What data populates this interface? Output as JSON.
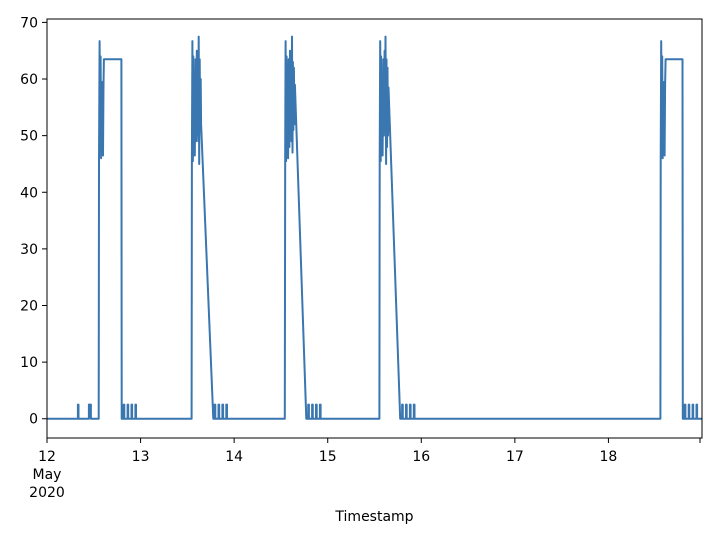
{
  "chart_data": {
    "type": "line",
    "title": "",
    "xlabel": "Timestamp",
    "ylabel": "",
    "xlim": [
      "2020-05-12T00:00",
      "2020-05-19T00:00"
    ],
    "ylim": [
      -3.4,
      70.6
    ],
    "grid": false,
    "legend": "none",
    "colors": {
      "line": "#3a76af",
      "axes": "#000000"
    },
    "yticks": [
      0,
      10,
      20,
      30,
      40,
      50,
      60,
      70
    ],
    "xticks": [
      {
        "x": "2020-05-12T00:00",
        "lines": [
          "12",
          "May",
          "2020"
        ]
      },
      {
        "x": "2020-05-13T00:00",
        "lines": [
          "13"
        ]
      },
      {
        "x": "2020-05-14T00:00",
        "lines": [
          "14"
        ]
      },
      {
        "x": "2020-05-15T00:00",
        "lines": [
          "15"
        ]
      },
      {
        "x": "2020-05-16T00:00",
        "lines": [
          "16"
        ]
      },
      {
        "x": "2020-05-17T00:00",
        "lines": [
          "17"
        ]
      },
      {
        "x": "2020-05-18T00:00",
        "lines": [
          "18"
        ]
      }
    ],
    "series": [
      {
        "points": [
          [
            "2020-05-12T00:00",
            0
          ],
          [
            "2020-05-12T07:55",
            0
          ],
          [
            "2020-05-12T07:55",
            2.5
          ],
          [
            "2020-05-12T08:05",
            2.5
          ],
          [
            "2020-05-12T08:05",
            0
          ],
          [
            "2020-05-12T10:45",
            0
          ],
          [
            "2020-05-12T10:45",
            2.5
          ],
          [
            "2020-05-12T11:15",
            2.5
          ],
          [
            "2020-05-12T11:15",
            0
          ],
          [
            "2020-05-12T13:15",
            0
          ],
          [
            "2020-05-12T13:20",
            45.5
          ],
          [
            "2020-05-12T13:30",
            66.7
          ],
          [
            "2020-05-12T13:38",
            48
          ],
          [
            "2020-05-12T13:45",
            64
          ],
          [
            "2020-05-12T13:52",
            46
          ],
          [
            "2020-05-12T14:00",
            59
          ],
          [
            "2020-05-12T14:08",
            48
          ],
          [
            "2020-05-12T14:15",
            59.5
          ],
          [
            "2020-05-12T14:22",
            46.5
          ],
          [
            "2020-05-12T14:30",
            59
          ],
          [
            "2020-05-12T14:36",
            63.5
          ],
          [
            "2020-05-12T19:05",
            63.5
          ],
          [
            "2020-05-12T19:10",
            0
          ],
          [
            "2020-05-12T19:40",
            0
          ],
          [
            "2020-05-12T19:40",
            2.5
          ],
          [
            "2020-05-12T19:50",
            2.5
          ],
          [
            "2020-05-12T19:50",
            0
          ],
          [
            "2020-05-12T20:40",
            0
          ],
          [
            "2020-05-12T20:40",
            2.5
          ],
          [
            "2020-05-12T20:50",
            2.5
          ],
          [
            "2020-05-12T20:50",
            0
          ],
          [
            "2020-05-12T21:40",
            0
          ],
          [
            "2020-05-12T21:40",
            2.5
          ],
          [
            "2020-05-12T21:50",
            2.5
          ],
          [
            "2020-05-12T21:50",
            0
          ],
          [
            "2020-05-12T22:40",
            0
          ],
          [
            "2020-05-12T22:40",
            2.5
          ],
          [
            "2020-05-12T22:50",
            2.5
          ],
          [
            "2020-05-12T22:50",
            0
          ],
          [
            "2020-05-13T13:05",
            0
          ],
          [
            "2020-05-13T13:10",
            46
          ],
          [
            "2020-05-13T13:18",
            66.7
          ],
          [
            "2020-05-13T13:25",
            45.5
          ],
          [
            "2020-05-13T13:32",
            64
          ],
          [
            "2020-05-13T13:40",
            47
          ],
          [
            "2020-05-13T13:48",
            59.5
          ],
          [
            "2020-05-13T13:55",
            46.5
          ],
          [
            "2020-05-13T14:05",
            63.5
          ],
          [
            "2020-05-13T14:15",
            49
          ],
          [
            "2020-05-13T14:25",
            65
          ],
          [
            "2020-05-13T14:32",
            50
          ],
          [
            "2020-05-13T14:40",
            63.5
          ],
          [
            "2020-05-13T14:48",
            49
          ],
          [
            "2020-05-13T14:55",
            67.5
          ],
          [
            "2020-05-13T15:02",
            45
          ],
          [
            "2020-05-13T15:10",
            63.5
          ],
          [
            "2020-05-13T15:18",
            51
          ],
          [
            "2020-05-13T15:25",
            60
          ],
          [
            "2020-05-13T15:32",
            52
          ],
          [
            "2020-05-13T18:40",
            0
          ],
          [
            "2020-05-13T19:00",
            0
          ],
          [
            "2020-05-13T19:00",
            2.5
          ],
          [
            "2020-05-13T19:10",
            2.5
          ],
          [
            "2020-05-13T19:10",
            0
          ],
          [
            "2020-05-13T20:00",
            0
          ],
          [
            "2020-05-13T20:00",
            2.5
          ],
          [
            "2020-05-13T20:10",
            2.5
          ],
          [
            "2020-05-13T20:10",
            0
          ],
          [
            "2020-05-13T21:00",
            0
          ],
          [
            "2020-05-13T21:00",
            2.5
          ],
          [
            "2020-05-13T21:10",
            2.5
          ],
          [
            "2020-05-13T21:10",
            0
          ],
          [
            "2020-05-13T22:00",
            0
          ],
          [
            "2020-05-13T22:00",
            2.5
          ],
          [
            "2020-05-13T22:10",
            2.5
          ],
          [
            "2020-05-13T22:10",
            0
          ],
          [
            "2020-05-14T13:00",
            0
          ],
          [
            "2020-05-14T13:05",
            47
          ],
          [
            "2020-05-14T13:12",
            66.7
          ],
          [
            "2020-05-14T13:20",
            45.5
          ],
          [
            "2020-05-14T13:28",
            64
          ],
          [
            "2020-05-14T13:35",
            47.5
          ],
          [
            "2020-05-14T13:42",
            59.5
          ],
          [
            "2020-05-14T13:50",
            46
          ],
          [
            "2020-05-14T14:00",
            63.5
          ],
          [
            "2020-05-14T14:10",
            48
          ],
          [
            "2020-05-14T14:20",
            65
          ],
          [
            "2020-05-14T14:28",
            50
          ],
          [
            "2020-05-14T14:35",
            63.5
          ],
          [
            "2020-05-14T14:42",
            49
          ],
          [
            "2020-05-14T14:50",
            67.5
          ],
          [
            "2020-05-14T14:58",
            47
          ],
          [
            "2020-05-14T15:05",
            63
          ],
          [
            "2020-05-14T15:12",
            51
          ],
          [
            "2020-05-14T15:20",
            62
          ],
          [
            "2020-05-14T15:28",
            52
          ],
          [
            "2020-05-14T15:35",
            59
          ],
          [
            "2020-05-14T18:30",
            0
          ],
          [
            "2020-05-14T19:00",
            0
          ],
          [
            "2020-05-14T19:00",
            2.5
          ],
          [
            "2020-05-14T19:10",
            2.5
          ],
          [
            "2020-05-14T19:10",
            0
          ],
          [
            "2020-05-14T20:00",
            0
          ],
          [
            "2020-05-14T20:00",
            2.5
          ],
          [
            "2020-05-14T20:10",
            2.5
          ],
          [
            "2020-05-14T20:10",
            0
          ],
          [
            "2020-05-14T21:00",
            0
          ],
          [
            "2020-05-14T21:00",
            2.5
          ],
          [
            "2020-05-14T21:10",
            2.5
          ],
          [
            "2020-05-14T21:10",
            0
          ],
          [
            "2020-05-14T22:00",
            0
          ],
          [
            "2020-05-14T22:00",
            2.5
          ],
          [
            "2020-05-14T22:10",
            2.5
          ],
          [
            "2020-05-14T22:10",
            0
          ],
          [
            "2020-05-15T13:15",
            0
          ],
          [
            "2020-05-15T13:20",
            46
          ],
          [
            "2020-05-15T13:28",
            66.7
          ],
          [
            "2020-05-15T13:35",
            45.5
          ],
          [
            "2020-05-15T13:42",
            64
          ],
          [
            "2020-05-15T13:50",
            47.5
          ],
          [
            "2020-05-15T13:58",
            59.5
          ],
          [
            "2020-05-15T14:05",
            46.5
          ],
          [
            "2020-05-15T14:15",
            63.5
          ],
          [
            "2020-05-15T14:25",
            50
          ],
          [
            "2020-05-15T14:35",
            65
          ],
          [
            "2020-05-15T14:42",
            51
          ],
          [
            "2020-05-15T14:50",
            67.5
          ],
          [
            "2020-05-15T14:58",
            45
          ],
          [
            "2020-05-15T15:05",
            63.5
          ],
          [
            "2020-05-15T15:12",
            48
          ],
          [
            "2020-05-15T15:20",
            62
          ],
          [
            "2020-05-15T15:28",
            50
          ],
          [
            "2020-05-15T15:35",
            58.5
          ],
          [
            "2020-05-15T18:35",
            0
          ],
          [
            "2020-05-15T19:05",
            0
          ],
          [
            "2020-05-15T19:05",
            2.5
          ],
          [
            "2020-05-15T19:15",
            2.5
          ],
          [
            "2020-05-15T19:15",
            0
          ],
          [
            "2020-05-15T20:05",
            0
          ],
          [
            "2020-05-15T20:05",
            2.5
          ],
          [
            "2020-05-15T20:15",
            2.5
          ],
          [
            "2020-05-15T20:15",
            0
          ],
          [
            "2020-05-15T21:05",
            0
          ],
          [
            "2020-05-15T21:05",
            2.5
          ],
          [
            "2020-05-15T21:15",
            2.5
          ],
          [
            "2020-05-15T21:15",
            0
          ],
          [
            "2020-05-15T22:05",
            0
          ],
          [
            "2020-05-15T22:05",
            2.5
          ],
          [
            "2020-05-15T22:15",
            2.5
          ],
          [
            "2020-05-15T22:15",
            0
          ],
          [
            "2020-05-18T13:20",
            0
          ],
          [
            "2020-05-18T13:25",
            45.5
          ],
          [
            "2020-05-18T13:32",
            66.7
          ],
          [
            "2020-05-18T13:40",
            48
          ],
          [
            "2020-05-18T13:48",
            64
          ],
          [
            "2020-05-18T13:55",
            46
          ],
          [
            "2020-05-18T14:02",
            59
          ],
          [
            "2020-05-18T14:10",
            48
          ],
          [
            "2020-05-18T14:18",
            59.5
          ],
          [
            "2020-05-18T14:25",
            46.5
          ],
          [
            "2020-05-18T14:32",
            59
          ],
          [
            "2020-05-18T14:40",
            63.5
          ],
          [
            "2020-05-18T19:00",
            63.5
          ],
          [
            "2020-05-18T19:05",
            0
          ],
          [
            "2020-05-18T19:35",
            0
          ],
          [
            "2020-05-18T19:35",
            2.5
          ],
          [
            "2020-05-18T19:45",
            2.5
          ],
          [
            "2020-05-18T19:45",
            0
          ],
          [
            "2020-05-18T20:35",
            0
          ],
          [
            "2020-05-18T20:35",
            2.5
          ],
          [
            "2020-05-18T20:45",
            2.5
          ],
          [
            "2020-05-18T20:45",
            0
          ],
          [
            "2020-05-18T21:35",
            0
          ],
          [
            "2020-05-18T21:35",
            2.5
          ],
          [
            "2020-05-18T21:45",
            2.5
          ],
          [
            "2020-05-18T21:45",
            0
          ],
          [
            "2020-05-18T22:35",
            0
          ],
          [
            "2020-05-18T22:35",
            2.5
          ],
          [
            "2020-05-18T22:45",
            2.5
          ],
          [
            "2020-05-18T22:45",
            0
          ],
          [
            "2020-05-19T00:00",
            0
          ]
        ]
      }
    ]
  }
}
